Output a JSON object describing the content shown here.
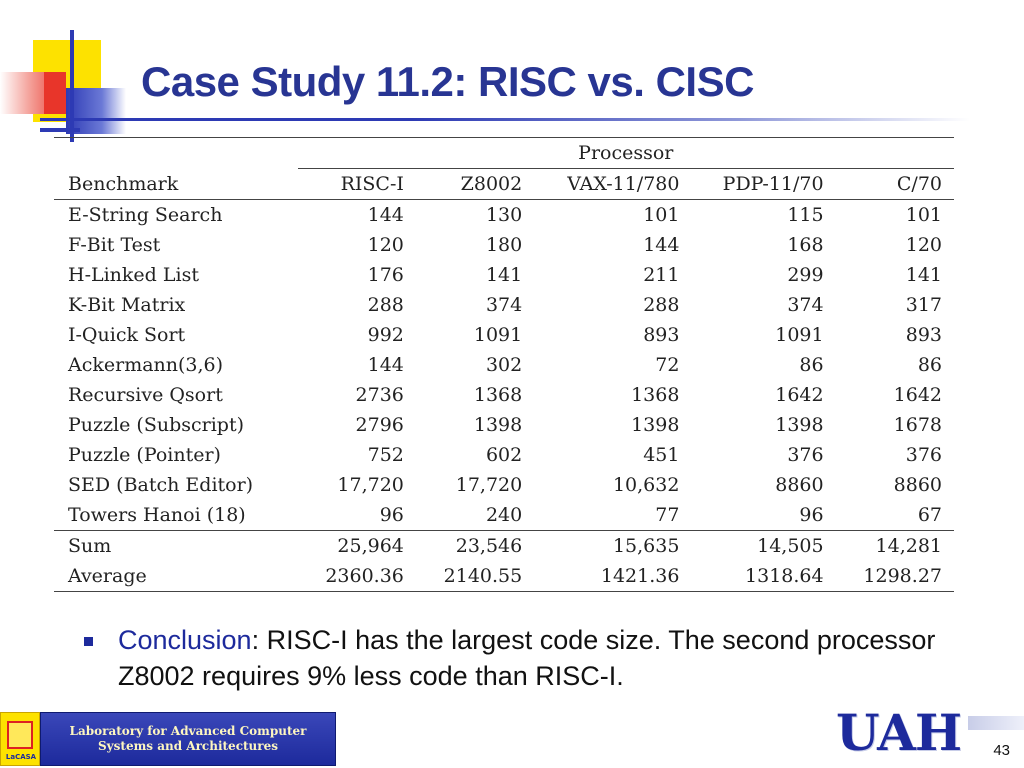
{
  "slide": {
    "title": "Case Study 11.2: RISC vs. CISC",
    "page_number": "43"
  },
  "table": {
    "group_header": "Processor",
    "columns": [
      "Benchmark",
      "RISC-I",
      "Z8002",
      "VAX-11/780",
      "PDP-11/70",
      "C/70"
    ],
    "rows": [
      [
        "E-String Search",
        "144",
        "130",
        "101",
        "115",
        "101"
      ],
      [
        "F-Bit Test",
        "120",
        "180",
        "144",
        "168",
        "120"
      ],
      [
        "H-Linked List",
        "176",
        "141",
        "211",
        "299",
        "141"
      ],
      [
        "K-Bit Matrix",
        "288",
        "374",
        "288",
        "374",
        "317"
      ],
      [
        "I-Quick Sort",
        "992",
        "1091",
        "893",
        "1091",
        "893"
      ],
      [
        "Ackermann(3,6)",
        "144",
        "302",
        "72",
        "86",
        "86"
      ],
      [
        "Recursive Qsort",
        "2736",
        "1368",
        "1368",
        "1642",
        "1642"
      ],
      [
        "Puzzle (Subscript)",
        "2796",
        "1398",
        "1398",
        "1398",
        "1678"
      ],
      [
        "Puzzle (Pointer)",
        "752",
        "602",
        "451",
        "376",
        "376"
      ],
      [
        "SED (Batch Editor)",
        "17,720",
        "17,720",
        "10,632",
        "8860",
        "8860"
      ],
      [
        "Towers Hanoi (18)",
        "96",
        "240",
        "77",
        "96",
        "67"
      ]
    ],
    "summary_rows": [
      [
        "Sum",
        "25,964",
        "23,546",
        "15,635",
        "14,505",
        "14,281"
      ],
      [
        "Average",
        "2360.36",
        "2140.55",
        "1421.36",
        "1318.64",
        "1298.27"
      ]
    ]
  },
  "bullet": {
    "key": "Conclusion",
    "text": ": RISC-I has the largest code size. The second processor Z8002 requires 9% less code than RISC-I."
  },
  "footer": {
    "lab_line1": "Laboratory for Advanced Computer",
    "lab_line2": "Systems and Architectures",
    "lab_logo_text": "LaCASA",
    "university_logo": "UAH"
  },
  "colors": {
    "title": "#283593",
    "accent_blue": "#1d2a9c",
    "accent_yellow": "#fde200",
    "accent_red": "#e8352a"
  }
}
